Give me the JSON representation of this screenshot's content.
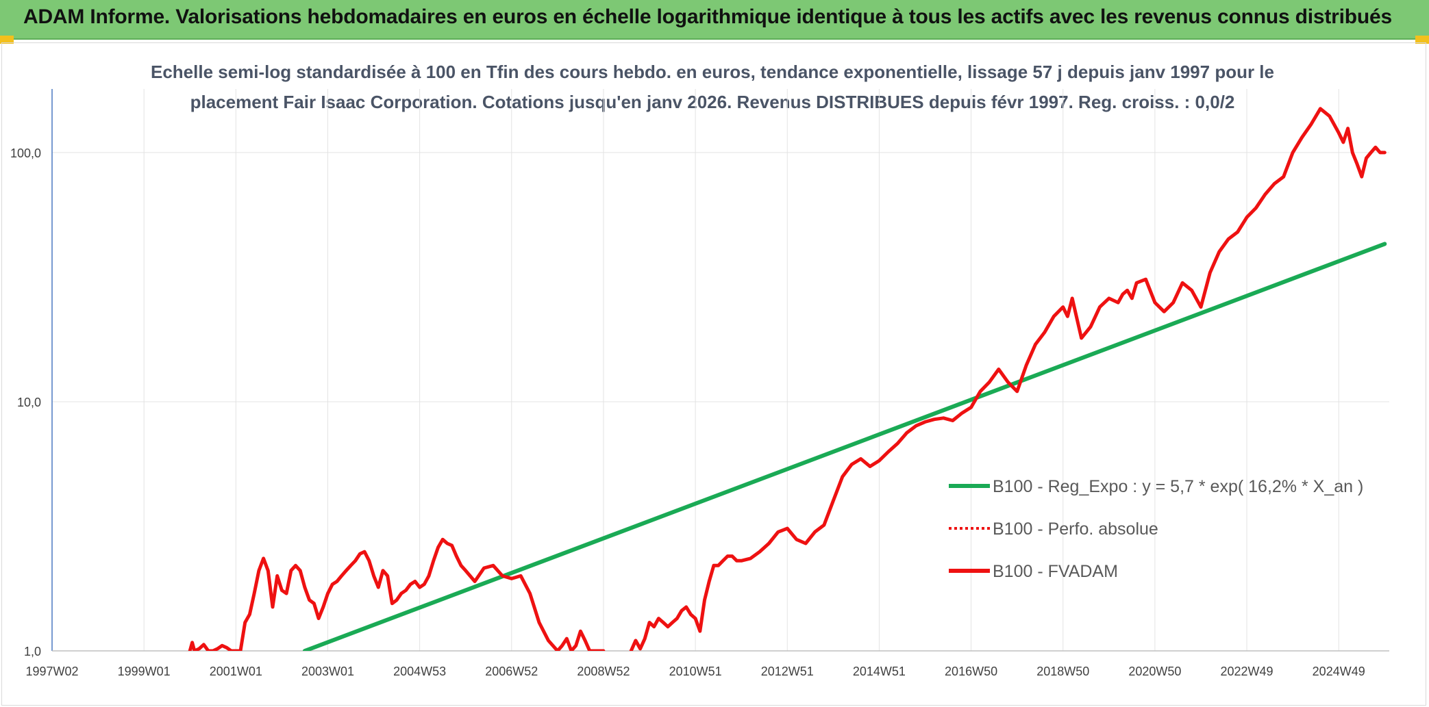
{
  "banner": {
    "title": "ADAM Informe. Valorisations hebdomadaires en euros en échelle logarithmique identique à tous les actifs avec les revenus connus distribués"
  },
  "colors": {
    "banner_bg": "#7dc874",
    "corner": "#f3c01c",
    "trend": "#1aaa55",
    "fvadam": "#ee1111",
    "perfo": "#ee1111",
    "grid": "#e3e3e3",
    "axis": "#4a78c0"
  },
  "chart_data": {
    "type": "line",
    "title": "Echelle semi-log standardisée à 100 en Tfin des cours hebdo. en euros, tendance exponentielle, lissage 57 j depuis janv 1997 pour le placement Fair Isaac Corporation. Cotations jusqu'en janv 2026. Revenus DISTRIBUES depuis févr 1997. Reg. croiss. : 0,0/2",
    "title_lines": [
      "Echelle semi-log standardisée à 100 en Tfin des cours hebdo. en euros, tendance exponentielle, lissage 57 j depuis janv 1997 pour le",
      "placement Fair Isaac Corporation. Cotations jusqu'en janv 2026. Revenus DISTRIBUES depuis févr 1997. Reg. croiss. : 0,0/2"
    ],
    "y_scale": "log",
    "ylim": [
      1,
      180
    ],
    "y_ticks": [
      1,
      10,
      100
    ],
    "y_tick_labels": [
      "1,0",
      "10,0",
      "100,0"
    ],
    "xlim": [
      1997.0,
      2026.1
    ],
    "x_ticks": [
      {
        "label": "1997W02",
        "x": 1997.0
      },
      {
        "label": "1999W01",
        "x": 1999.0
      },
      {
        "label": "2001W01",
        "x": 2001.0
      },
      {
        "label": "2003W01",
        "x": 2003.0
      },
      {
        "label": "2004W53",
        "x": 2005.0
      },
      {
        "label": "2006W52",
        "x": 2007.0
      },
      {
        "label": "2008W52",
        "x": 2009.0
      },
      {
        "label": "2010W51",
        "x": 2011.0
      },
      {
        "label": "2012W51",
        "x": 2013.0
      },
      {
        "label": "2014W51",
        "x": 2015.0
      },
      {
        "label": "2016W50",
        "x": 2017.0
      },
      {
        "label": "2018W50",
        "x": 2019.0
      },
      {
        "label": "2020W50",
        "x": 2021.0
      },
      {
        "label": "2022W49",
        "x": 2023.0
      },
      {
        "label": "2024W49",
        "x": 2025.0
      }
    ],
    "legend": [
      {
        "key": "trend",
        "label": "B100 - Reg_Expo : y = 5,7 * exp( 16,2% *  X_an )"
      },
      {
        "key": "perfo",
        "label": "B100 - Perfo. absolue"
      },
      {
        "key": "fvadam",
        "label": "B100 - FVADAM"
      }
    ],
    "series": [
      {
        "name": "B100 - Reg_Expo : y = 5,7 * exp( 16,2% *  X_an )",
        "key": "trend",
        "style": "solid",
        "x": [
          2002.5,
          2026.0
        ],
        "y": [
          1.0,
          43.0
        ]
      },
      {
        "name": "B100 - FVADAM",
        "key": "fvadam",
        "style": "solid",
        "segments": [
          {
            "x": [
              2000.0,
              2000.05,
              2000.1,
              2000.2,
              2000.3,
              2000.4,
              2000.5,
              2000.6,
              2000.7,
              2000.8,
              2000.9,
              2001.0,
              2001.1,
              2001.2,
              2001.3,
              2001.4,
              2001.5,
              2001.6,
              2001.7,
              2001.8,
              2001.9,
              2002.0,
              2002.1,
              2002.2,
              2002.3,
              2002.4,
              2002.5,
              2002.6,
              2002.7,
              2002.8,
              2002.9,
              2003.0,
              2003.1,
              2003.2,
              2003.3,
              2003.4,
              2003.5,
              2003.6,
              2003.7,
              2003.8,
              2003.9,
              2004.0,
              2004.1,
              2004.2,
              2004.3,
              2004.4,
              2004.5,
              2004.6,
              2004.7,
              2004.8,
              2004.9,
              2005.0,
              2005.1,
              2005.2,
              2005.3,
              2005.4,
              2005.5,
              2005.6,
              2005.7,
              2005.8,
              2005.9,
              2006.0,
              2006.2,
              2006.4,
              2006.6,
              2006.8,
              2007.0,
              2007.2,
              2007.4,
              2007.6,
              2007.8,
              2008.0,
              2008.1,
              2008.2,
              2008.3,
              2008.4,
              2008.5,
              2008.6,
              2008.7,
              2008.8,
              2008.9,
              2009.0
            ],
            "y": [
              1.0,
              1.08,
              1.0,
              1.02,
              1.06,
              1.0,
              1.0,
              1.02,
              1.05,
              1.03,
              1.0,
              1.0,
              1.0,
              1.3,
              1.4,
              1.7,
              2.1,
              2.35,
              2.1,
              1.5,
              2.0,
              1.75,
              1.7,
              2.1,
              2.2,
              2.1,
              1.8,
              1.6,
              1.55,
              1.35,
              1.5,
              1.7,
              1.85,
              1.9,
              2.0,
              2.1,
              2.2,
              2.3,
              2.45,
              2.5,
              2.3,
              2.0,
              1.8,
              2.1,
              2.0,
              1.55,
              1.6,
              1.7,
              1.75,
              1.85,
              1.9,
              1.8,
              1.85,
              2.0,
              2.3,
              2.6,
              2.8,
              2.7,
              2.65,
              2.4,
              2.2,
              2.1,
              1.9,
              2.15,
              2.2,
              2.0,
              1.95,
              2.0,
              1.7,
              1.3,
              1.1,
              1.0,
              1.05,
              1.12,
              1.0,
              1.05,
              1.2,
              1.1,
              1.0,
              1.0,
              1.0,
              1.0
            ]
          },
          {
            "x": [
              2009.6,
              2009.7,
              2009.8,
              2009.9,
              2010.0,
              2010.1,
              2010.2,
              2010.3,
              2010.4,
              2010.5,
              2010.6,
              2010.7,
              2010.8,
              2010.9,
              2011.0,
              2011.1,
              2011.2,
              2011.3,
              2011.4,
              2011.5,
              2011.6,
              2011.7,
              2011.8,
              2011.9,
              2012.0,
              2012.2,
              2012.4,
              2012.6,
              2012.8,
              2013.0,
              2013.2,
              2013.4,
              2013.6,
              2013.8,
              2014.0,
              2014.2,
              2014.4,
              2014.6,
              2014.8,
              2015.0,
              2015.2,
              2015.4,
              2015.6,
              2015.8,
              2016.0,
              2016.2,
              2016.4,
              2016.6,
              2016.8,
              2017.0,
              2017.2,
              2017.4,
              2017.6,
              2017.8,
              2018.0,
              2018.2,
              2018.4,
              2018.6,
              2018.8,
              2019.0,
              2019.1,
              2019.2,
              2019.4,
              2019.6,
              2019.8,
              2020.0,
              2020.2,
              2020.3,
              2020.4,
              2020.5,
              2020.6,
              2020.8,
              2021.0,
              2021.2,
              2021.4,
              2021.6,
              2021.8,
              2022.0,
              2022.2,
              2022.4,
              2022.6,
              2022.8,
              2023.0,
              2023.2,
              2023.4,
              2023.6,
              2023.8,
              2024.0,
              2024.2,
              2024.4,
              2024.6,
              2024.8,
              2025.0,
              2025.1,
              2025.2,
              2025.3,
              2025.4,
              2025.5,
              2025.6,
              2025.7,
              2025.8,
              2025.9,
              2026.0
            ],
            "y": [
              1.0,
              1.1,
              1.02,
              1.12,
              1.3,
              1.25,
              1.35,
              1.3,
              1.25,
              1.3,
              1.35,
              1.45,
              1.5,
              1.4,
              1.35,
              1.2,
              1.6,
              1.9,
              2.2,
              2.2,
              2.3,
              2.4,
              2.4,
              2.3,
              2.3,
              2.35,
              2.5,
              2.7,
              3.0,
              3.1,
              2.8,
              2.7,
              3.0,
              3.2,
              4.0,
              5.0,
              5.6,
              5.9,
              5.5,
              5.8,
              6.3,
              6.8,
              7.5,
              8.0,
              8.3,
              8.5,
              8.6,
              8.4,
              9.0,
              9.5,
              11.0,
              12.0,
              13.5,
              12.0,
              11.0,
              14.0,
              17.0,
              19.0,
              22.0,
              24.0,
              22.0,
              26.0,
              18.0,
              20.0,
              24.0,
              26.0,
              25.0,
              27.0,
              28.0,
              26.0,
              30.0,
              31.0,
              25.0,
              23.0,
              25.0,
              30.0,
              28.0,
              24.0,
              33.0,
              40.0,
              45.0,
              48.0,
              55.0,
              60.0,
              68.0,
              75.0,
              80.0,
              100.0,
              115.0,
              130.0,
              150.0,
              140.0,
              120.0,
              110.0,
              125.0,
              100.0,
              90.0,
              80.0,
              95.0,
              100.0,
              105.0,
              100.0,
              100.0
            ]
          }
        ]
      }
    ]
  }
}
